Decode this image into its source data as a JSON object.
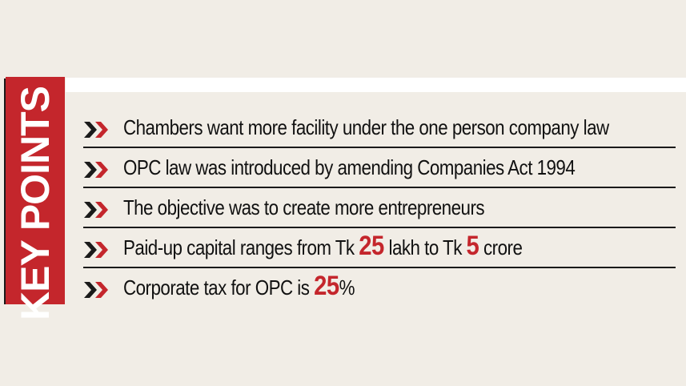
{
  "header": {
    "label": "KEY POINTS"
  },
  "colors": {
    "accent": "#c4262c",
    "background": "#f1ede6",
    "text": "#111111"
  },
  "icon": "double-chevron-right-icon",
  "points": [
    {
      "text": "Chambers want more facility under the one person company law"
    },
    {
      "text": "OPC law was introduced by amending Companies Act 1994"
    },
    {
      "text": "The objective was to create more entrepreneurs"
    },
    {
      "before": "Paid-up capital ranges from Tk ",
      "num1": "25",
      "middle": " lakh to Tk ",
      "num2": "5",
      "after": " crore"
    },
    {
      "before": "Corporate tax for OPC is ",
      "num1": "25",
      "after": "%"
    }
  ]
}
